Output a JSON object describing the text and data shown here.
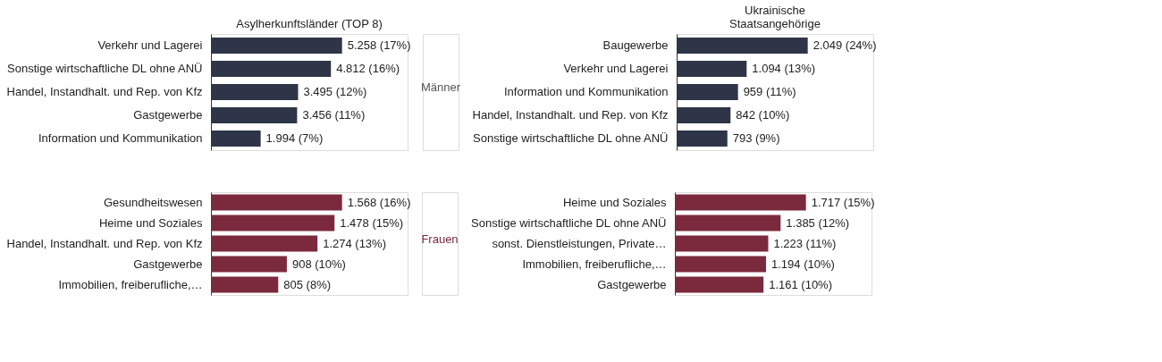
{
  "chart_data": [
    {
      "type": "bar",
      "orientation": "horizontal",
      "title": "Asylherkunftsländer (TOP 8)",
      "categories": [
        "Verkehr und Lagerei",
        "Sonstige wirtschaftliche DL ohne ANÜ",
        "Handel, Instandhalt. und Rep. von Kfz",
        "Gastgewerbe",
        "Information und Kommunikation"
      ],
      "values": [
        5258,
        4812,
        3495,
        3456,
        1994
      ],
      "value_labels": [
        "5.258 (17%)",
        "4.812 (16%)",
        "3.495 (12%)",
        "3.456 (11%)",
        "1.994 (7%)"
      ],
      "color": "#2e3548"
    },
    {
      "type": "bar",
      "orientation": "horizontal",
      "title": "Ukrainische Staatsangehörige",
      "annotations": [
        "Männer"
      ],
      "categories": [
        "Baugewerbe",
        "Verkehr und Lagerei",
        "Information und Kommunikation",
        "Handel, Instandhalt. und Rep. von Kfz",
        "Sonstige wirtschaftliche DL ohne ANÜ"
      ],
      "values": [
        2049,
        1094,
        959,
        842,
        793
      ],
      "value_labels": [
        "2.049 (24%)",
        "1.094 (13%)",
        "959 (11%)",
        "842 (10%)",
        "793 (9%)"
      ],
      "color": "#2e3548"
    },
    {
      "type": "bar",
      "orientation": "horizontal",
      "categories": [
        "Gesundheitswesen",
        "Heime und Soziales",
        "Handel, Instandhalt. und Rep. von Kfz",
        "Gastgewerbe",
        "Immobilien, freiberufliche,…"
      ],
      "values": [
        1568,
        1478,
        1274,
        908,
        805
      ],
      "value_labels": [
        "1.568 (16%)",
        "1.478 (15%)",
        "1.274 (13%)",
        "908 (10%)",
        "805 (8%)"
      ],
      "color": "#7b2a3e"
    },
    {
      "type": "bar",
      "orientation": "horizontal",
      "annotations": [
        "Frauen"
      ],
      "categories": [
        "Heime und Soziales",
        "Sonstige wirtschaftliche DL ohne ANÜ",
        "sonst. Dienstleistungen, Private…",
        "Immobilien, freiberufliche,…",
        "Gastgewerbe"
      ],
      "values": [
        1717,
        1385,
        1223,
        1194,
        1161
      ],
      "value_labels": [
        "1.717 (15%)",
        "1.385 (12%)",
        "1.223 (11%)",
        "1.194 (10%)",
        "1.161 (10%)"
      ],
      "color": "#7b2a3e"
    }
  ]
}
